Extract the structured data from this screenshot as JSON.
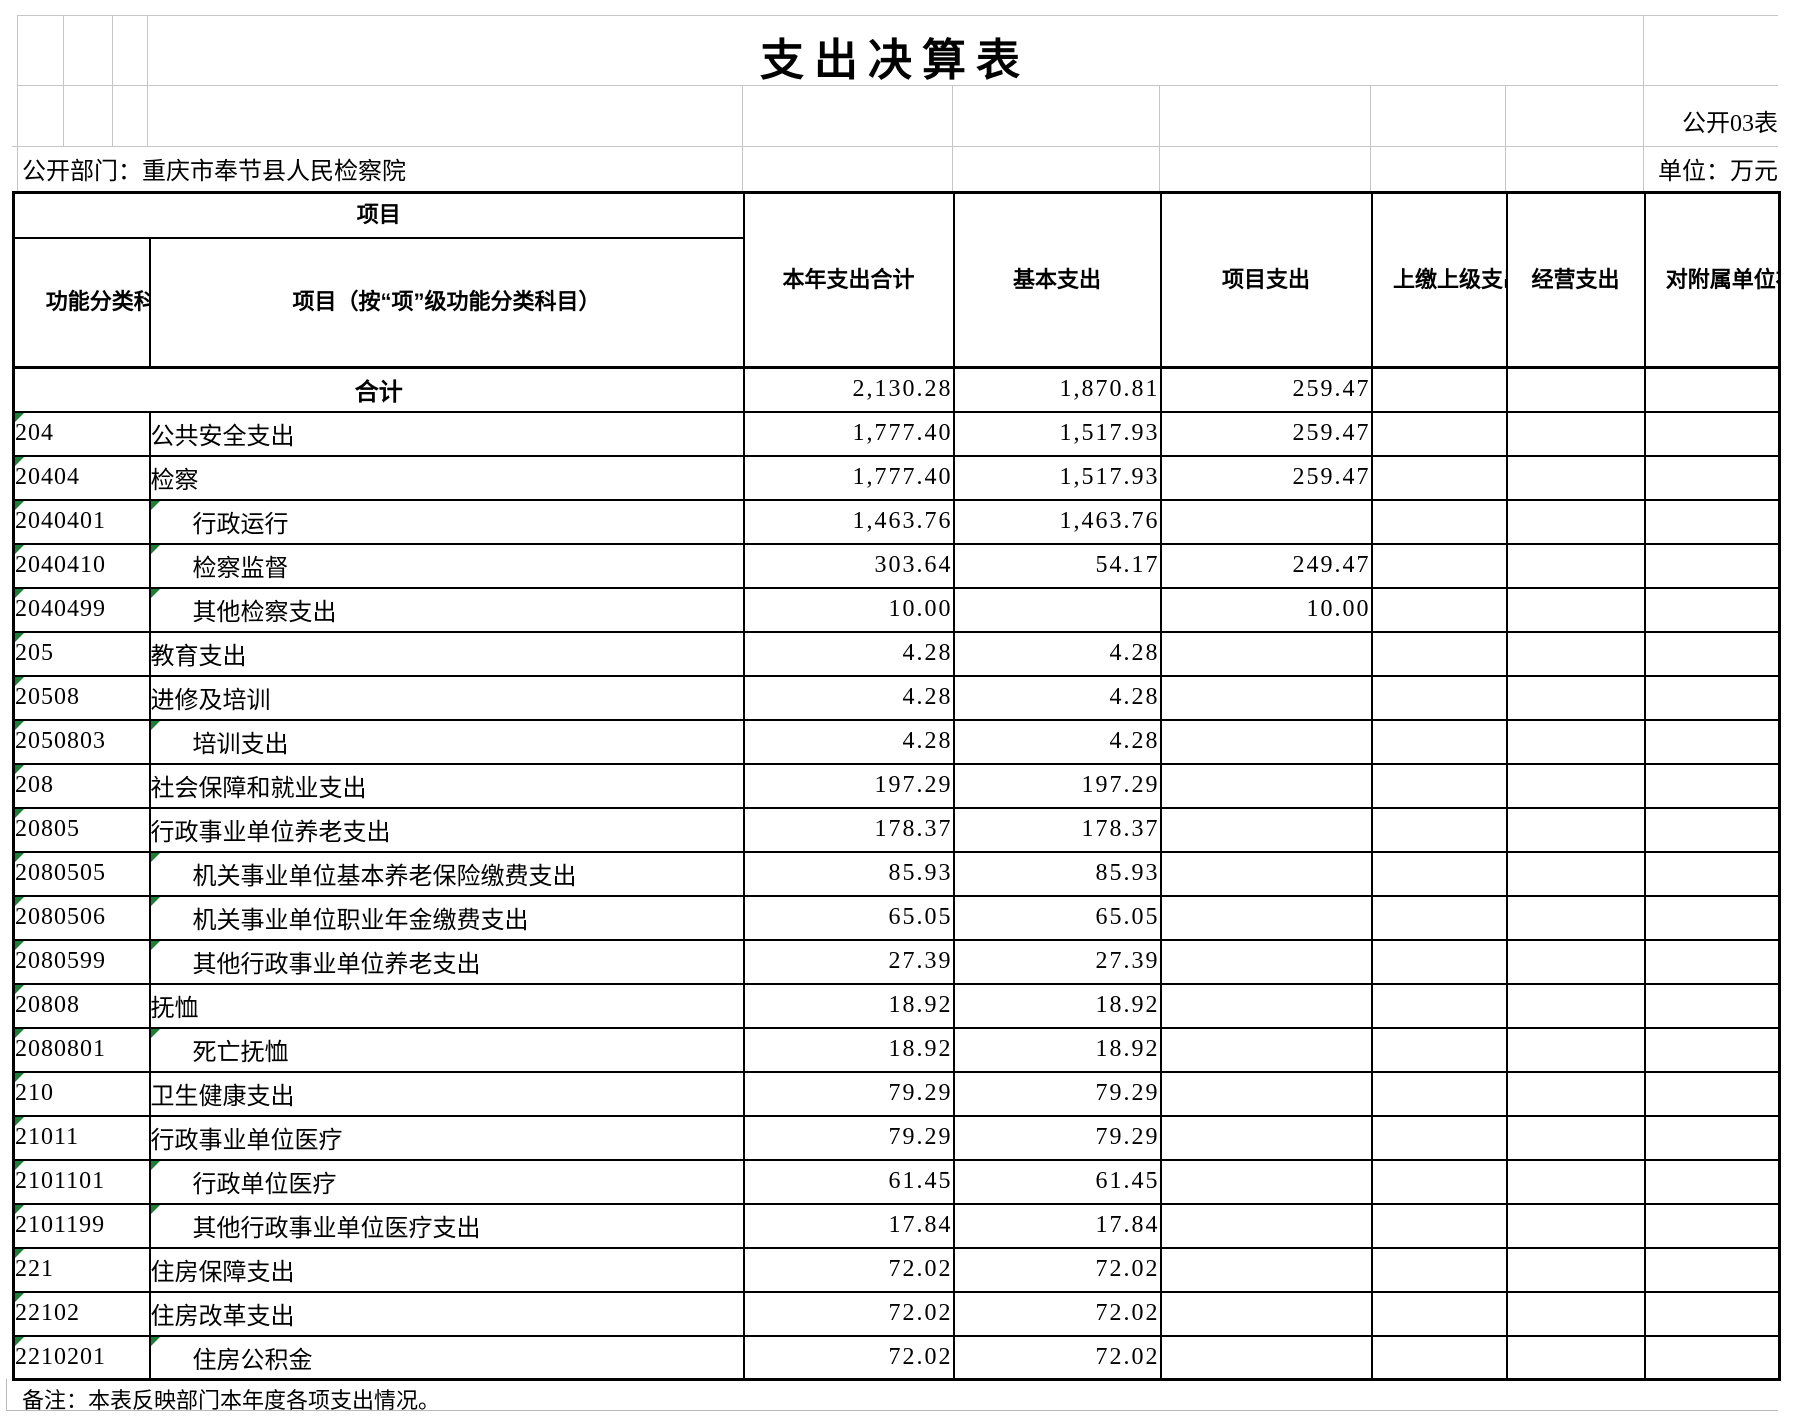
{
  "page": {
    "title": "支出决算表",
    "form_code": "公开03表",
    "department": "公开部门：重庆市奉节县人民检察院",
    "unit": "单位：万元",
    "note": "备注：本表反映部门本年度各项支出情况。"
  },
  "columns": {
    "group": "项目",
    "code": "功能分类科目编码",
    "name": "项目（按“项”级功能分类科目）",
    "total": "本年支出合计",
    "basic": "基本支出",
    "project": "项目支出",
    "upper": "上缴上级支出",
    "operating": "经营支出",
    "subsidy": "对附属单位补助支出"
  },
  "summary": {
    "name": "合计",
    "total": "2,130.28",
    "basic": "1,870.81",
    "project": "259.47",
    "upper": "",
    "operating": "",
    "subsidy": ""
  },
  "rows": [
    {
      "code": "204",
      "name": "公共安全支出",
      "sub": false,
      "total": "1,777.40",
      "basic": "1,517.93",
      "project": "259.47",
      "upper": "",
      "operating": "",
      "subsidy": ""
    },
    {
      "code": "20404",
      "name": "检察",
      "sub": false,
      "total": "1,777.40",
      "basic": "1,517.93",
      "project": "259.47",
      "upper": "",
      "operating": "",
      "subsidy": ""
    },
    {
      "code": "2040401",
      "name": "行政运行",
      "sub": true,
      "total": "1,463.76",
      "basic": "1,463.76",
      "project": "",
      "upper": "",
      "operating": "",
      "subsidy": ""
    },
    {
      "code": "2040410",
      "name": "检察监督",
      "sub": true,
      "total": "303.64",
      "basic": "54.17",
      "project": "249.47",
      "upper": "",
      "operating": "",
      "subsidy": ""
    },
    {
      "code": "2040499",
      "name": "其他检察支出",
      "sub": true,
      "total": "10.00",
      "basic": "",
      "project": "10.00",
      "upper": "",
      "operating": "",
      "subsidy": ""
    },
    {
      "code": "205",
      "name": "教育支出",
      "sub": false,
      "total": "4.28",
      "basic": "4.28",
      "project": "",
      "upper": "",
      "operating": "",
      "subsidy": ""
    },
    {
      "code": "20508",
      "name": "进修及培训",
      "sub": false,
      "total": "4.28",
      "basic": "4.28",
      "project": "",
      "upper": "",
      "operating": "",
      "subsidy": ""
    },
    {
      "code": "2050803",
      "name": "培训支出",
      "sub": true,
      "total": "4.28",
      "basic": "4.28",
      "project": "",
      "upper": "",
      "operating": "",
      "subsidy": ""
    },
    {
      "code": "208",
      "name": "社会保障和就业支出",
      "sub": false,
      "total": "197.29",
      "basic": "197.29",
      "project": "",
      "upper": "",
      "operating": "",
      "subsidy": ""
    },
    {
      "code": "20805",
      "name": "行政事业单位养老支出",
      "sub": false,
      "total": "178.37",
      "basic": "178.37",
      "project": "",
      "upper": "",
      "operating": "",
      "subsidy": ""
    },
    {
      "code": "2080505",
      "name": "机关事业单位基本养老保险缴费支出",
      "sub": true,
      "total": "85.93",
      "basic": "85.93",
      "project": "",
      "upper": "",
      "operating": "",
      "subsidy": ""
    },
    {
      "code": "2080506",
      "name": "机关事业单位职业年金缴费支出",
      "sub": true,
      "total": "65.05",
      "basic": "65.05",
      "project": "",
      "upper": "",
      "operating": "",
      "subsidy": ""
    },
    {
      "code": "2080599",
      "name": "其他行政事业单位养老支出",
      "sub": true,
      "total": "27.39",
      "basic": "27.39",
      "project": "",
      "upper": "",
      "operating": "",
      "subsidy": ""
    },
    {
      "code": "20808",
      "name": "抚恤",
      "sub": false,
      "total": "18.92",
      "basic": "18.92",
      "project": "",
      "upper": "",
      "operating": "",
      "subsidy": ""
    },
    {
      "code": "2080801",
      "name": "死亡抚恤",
      "sub": true,
      "total": "18.92",
      "basic": "18.92",
      "project": "",
      "upper": "",
      "operating": "",
      "subsidy": ""
    },
    {
      "code": "210",
      "name": "卫生健康支出",
      "sub": false,
      "total": "79.29",
      "basic": "79.29",
      "project": "",
      "upper": "",
      "operating": "",
      "subsidy": ""
    },
    {
      "code": "21011",
      "name": "行政事业单位医疗",
      "sub": false,
      "total": "79.29",
      "basic": "79.29",
      "project": "",
      "upper": "",
      "operating": "",
      "subsidy": ""
    },
    {
      "code": "2101101",
      "name": "行政单位医疗",
      "sub": true,
      "total": "61.45",
      "basic": "61.45",
      "project": "",
      "upper": "",
      "operating": "",
      "subsidy": ""
    },
    {
      "code": "2101199",
      "name": "其他行政事业单位医疗支出",
      "sub": true,
      "total": "17.84",
      "basic": "17.84",
      "project": "",
      "upper": "",
      "operating": "",
      "subsidy": ""
    },
    {
      "code": "221",
      "name": "住房保障支出",
      "sub": false,
      "total": "72.02",
      "basic": "72.02",
      "project": "",
      "upper": "",
      "operating": "",
      "subsidy": ""
    },
    {
      "code": "22102",
      "name": "住房改革支出",
      "sub": false,
      "total": "72.02",
      "basic": "72.02",
      "project": "",
      "upper": "",
      "operating": "",
      "subsidy": ""
    },
    {
      "code": "2210201",
      "name": "住房公积金",
      "sub": true,
      "total": "72.02",
      "basic": "72.02",
      "project": "",
      "upper": "",
      "operating": "",
      "subsidy": ""
    }
  ]
}
